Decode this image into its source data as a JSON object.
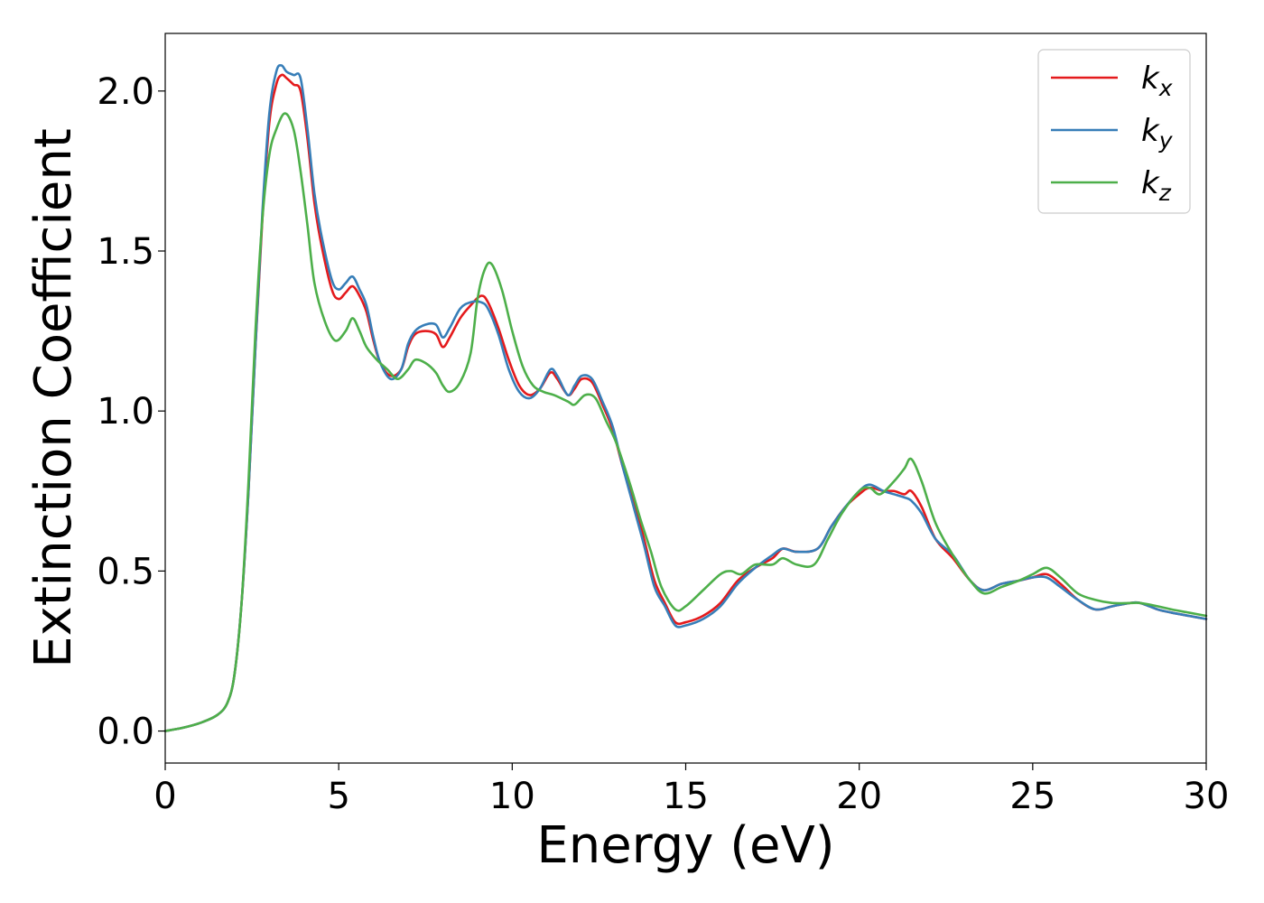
{
  "chart_data": {
    "type": "line",
    "title": "",
    "xlabel": "Energy (eV)",
    "ylabel": "Extinction Coefficient",
    "xlim": [
      0,
      30
    ],
    "ylim": [
      -0.1,
      2.18
    ],
    "xticks": [
      0,
      5,
      10,
      15,
      20,
      25,
      30
    ],
    "xtick_labels": [
      "0",
      "5",
      "10",
      "15",
      "20",
      "25",
      "30"
    ],
    "yticks": [
      0.0,
      0.5,
      1.0,
      1.5,
      2.0
    ],
    "ytick_labels": [
      "0.0",
      "0.5",
      "1.0",
      "1.5",
      "2.0"
    ],
    "grid": false,
    "legend_position": "top-right",
    "series": [
      {
        "name": "k_x",
        "label_base": "k",
        "label_sub": "x",
        "color": "#e41a1c",
        "points": [
          [
            0,
            0.0
          ],
          [
            0.5,
            0.01
          ],
          [
            1.0,
            0.025
          ],
          [
            1.5,
            0.05
          ],
          [
            1.8,
            0.09
          ],
          [
            2.0,
            0.18
          ],
          [
            2.2,
            0.4
          ],
          [
            2.4,
            0.75
          ],
          [
            2.6,
            1.2
          ],
          [
            2.8,
            1.6
          ],
          [
            3.0,
            1.9
          ],
          [
            3.2,
            2.02
          ],
          [
            3.35,
            2.05
          ],
          [
            3.5,
            2.04
          ],
          [
            3.7,
            2.02
          ],
          [
            3.9,
            2.0
          ],
          [
            4.1,
            1.85
          ],
          [
            4.3,
            1.65
          ],
          [
            4.5,
            1.52
          ],
          [
            4.8,
            1.38
          ],
          [
            5.0,
            1.35
          ],
          [
            5.2,
            1.37
          ],
          [
            5.4,
            1.39
          ],
          [
            5.6,
            1.36
          ],
          [
            5.8,
            1.31
          ],
          [
            6.0,
            1.22
          ],
          [
            6.2,
            1.15
          ],
          [
            6.5,
            1.11
          ],
          [
            6.8,
            1.13
          ],
          [
            7.0,
            1.2
          ],
          [
            7.2,
            1.24
          ],
          [
            7.5,
            1.25
          ],
          [
            7.8,
            1.24
          ],
          [
            8.0,
            1.2
          ],
          [
            8.2,
            1.23
          ],
          [
            8.5,
            1.29
          ],
          [
            8.8,
            1.33
          ],
          [
            9.1,
            1.36
          ],
          [
            9.3,
            1.34
          ],
          [
            9.6,
            1.26
          ],
          [
            9.9,
            1.16
          ],
          [
            10.2,
            1.08
          ],
          [
            10.5,
            1.05
          ],
          [
            10.8,
            1.07
          ],
          [
            11.1,
            1.12
          ],
          [
            11.3,
            1.1
          ],
          [
            11.6,
            1.05
          ],
          [
            11.8,
            1.07
          ],
          [
            12.0,
            1.1
          ],
          [
            12.3,
            1.09
          ],
          [
            12.6,
            1.02
          ],
          [
            12.9,
            0.94
          ],
          [
            13.2,
            0.82
          ],
          [
            13.5,
            0.72
          ],
          [
            13.8,
            0.6
          ],
          [
            14.1,
            0.47
          ],
          [
            14.4,
            0.4
          ],
          [
            14.7,
            0.34
          ],
          [
            15.0,
            0.34
          ],
          [
            15.5,
            0.36
          ],
          [
            16.0,
            0.4
          ],
          [
            16.5,
            0.47
          ],
          [
            17.0,
            0.51
          ],
          [
            17.5,
            0.54
          ],
          [
            17.8,
            0.57
          ],
          [
            18.2,
            0.56
          ],
          [
            18.8,
            0.57
          ],
          [
            19.2,
            0.64
          ],
          [
            19.6,
            0.7
          ],
          [
            20.0,
            0.74
          ],
          [
            20.3,
            0.76
          ],
          [
            20.7,
            0.75
          ],
          [
            21.0,
            0.75
          ],
          [
            21.3,
            0.74
          ],
          [
            21.5,
            0.75
          ],
          [
            21.8,
            0.7
          ],
          [
            22.2,
            0.6
          ],
          [
            22.7,
            0.54
          ],
          [
            23.2,
            0.47
          ],
          [
            23.6,
            0.44
          ],
          [
            24.1,
            0.46
          ],
          [
            24.6,
            0.47
          ],
          [
            25.0,
            0.48
          ],
          [
            25.4,
            0.49
          ],
          [
            25.8,
            0.46
          ],
          [
            26.3,
            0.41
          ],
          [
            26.8,
            0.38
          ],
          [
            27.3,
            0.39
          ],
          [
            27.8,
            0.4
          ],
          [
            28.1,
            0.4
          ],
          [
            28.6,
            0.38
          ],
          [
            29.0,
            0.37
          ],
          [
            29.5,
            0.36
          ],
          [
            30.0,
            0.35
          ]
        ]
      },
      {
        "name": "k_y",
        "label_base": "k",
        "label_sub": "y",
        "color": "#377eb8",
        "points": [
          [
            0,
            0.0
          ],
          [
            0.5,
            0.01
          ],
          [
            1.0,
            0.025
          ],
          [
            1.5,
            0.05
          ],
          [
            1.8,
            0.09
          ],
          [
            2.0,
            0.18
          ],
          [
            2.2,
            0.4
          ],
          [
            2.4,
            0.75
          ],
          [
            2.6,
            1.2
          ],
          [
            2.8,
            1.62
          ],
          [
            3.0,
            1.93
          ],
          [
            3.2,
            2.06
          ],
          [
            3.35,
            2.08
          ],
          [
            3.5,
            2.06
          ],
          [
            3.7,
            2.05
          ],
          [
            3.9,
            2.04
          ],
          [
            4.1,
            1.88
          ],
          [
            4.3,
            1.68
          ],
          [
            4.5,
            1.55
          ],
          [
            4.8,
            1.41
          ],
          [
            5.0,
            1.38
          ],
          [
            5.2,
            1.4
          ],
          [
            5.4,
            1.42
          ],
          [
            5.6,
            1.38
          ],
          [
            5.8,
            1.33
          ],
          [
            6.0,
            1.23
          ],
          [
            6.2,
            1.15
          ],
          [
            6.5,
            1.1
          ],
          [
            6.8,
            1.13
          ],
          [
            7.0,
            1.21
          ],
          [
            7.2,
            1.25
          ],
          [
            7.5,
            1.27
          ],
          [
            7.8,
            1.27
          ],
          [
            8.0,
            1.23
          ],
          [
            8.2,
            1.26
          ],
          [
            8.5,
            1.32
          ],
          [
            8.8,
            1.34
          ],
          [
            9.1,
            1.34
          ],
          [
            9.3,
            1.32
          ],
          [
            9.6,
            1.24
          ],
          [
            9.9,
            1.13
          ],
          [
            10.2,
            1.06
          ],
          [
            10.5,
            1.04
          ],
          [
            10.8,
            1.07
          ],
          [
            11.1,
            1.13
          ],
          [
            11.3,
            1.11
          ],
          [
            11.6,
            1.05
          ],
          [
            11.8,
            1.08
          ],
          [
            12.0,
            1.11
          ],
          [
            12.3,
            1.1
          ],
          [
            12.6,
            1.03
          ],
          [
            12.9,
            0.95
          ],
          [
            13.2,
            0.82
          ],
          [
            13.5,
            0.7
          ],
          [
            13.8,
            0.58
          ],
          [
            14.1,
            0.45
          ],
          [
            14.4,
            0.39
          ],
          [
            14.7,
            0.33
          ],
          [
            15.0,
            0.33
          ],
          [
            15.5,
            0.35
          ],
          [
            16.0,
            0.39
          ],
          [
            16.5,
            0.46
          ],
          [
            17.0,
            0.51
          ],
          [
            17.5,
            0.55
          ],
          [
            17.8,
            0.57
          ],
          [
            18.2,
            0.56
          ],
          [
            18.8,
            0.57
          ],
          [
            19.2,
            0.64
          ],
          [
            19.6,
            0.7
          ],
          [
            20.0,
            0.75
          ],
          [
            20.3,
            0.77
          ],
          [
            20.7,
            0.75
          ],
          [
            21.0,
            0.74
          ],
          [
            21.3,
            0.73
          ],
          [
            21.5,
            0.72
          ],
          [
            21.8,
            0.68
          ],
          [
            22.2,
            0.6
          ],
          [
            22.7,
            0.55
          ],
          [
            23.2,
            0.47
          ],
          [
            23.6,
            0.44
          ],
          [
            24.1,
            0.46
          ],
          [
            24.6,
            0.47
          ],
          [
            25.0,
            0.48
          ],
          [
            25.4,
            0.48
          ],
          [
            25.8,
            0.45
          ],
          [
            26.3,
            0.41
          ],
          [
            26.8,
            0.38
          ],
          [
            27.3,
            0.39
          ],
          [
            27.8,
            0.4
          ],
          [
            28.1,
            0.4
          ],
          [
            28.6,
            0.38
          ],
          [
            29.0,
            0.37
          ],
          [
            29.5,
            0.36
          ],
          [
            30.0,
            0.35
          ]
        ]
      },
      {
        "name": "k_z",
        "label_base": "k",
        "label_sub": "z",
        "color": "#4daf4a",
        "points": [
          [
            0,
            0.0
          ],
          [
            0.5,
            0.01
          ],
          [
            1.0,
            0.025
          ],
          [
            1.5,
            0.05
          ],
          [
            1.8,
            0.09
          ],
          [
            2.0,
            0.18
          ],
          [
            2.2,
            0.4
          ],
          [
            2.4,
            0.78
          ],
          [
            2.6,
            1.25
          ],
          [
            2.8,
            1.6
          ],
          [
            3.0,
            1.8
          ],
          [
            3.2,
            1.88
          ],
          [
            3.45,
            1.93
          ],
          [
            3.7,
            1.88
          ],
          [
            3.9,
            1.75
          ],
          [
            4.1,
            1.58
          ],
          [
            4.3,
            1.4
          ],
          [
            4.6,
            1.28
          ],
          [
            4.9,
            1.22
          ],
          [
            5.2,
            1.25
          ],
          [
            5.4,
            1.29
          ],
          [
            5.6,
            1.25
          ],
          [
            5.8,
            1.2
          ],
          [
            6.1,
            1.16
          ],
          [
            6.4,
            1.13
          ],
          [
            6.7,
            1.1
          ],
          [
            7.0,
            1.13
          ],
          [
            7.2,
            1.16
          ],
          [
            7.5,
            1.15
          ],
          [
            7.8,
            1.12
          ],
          [
            8.0,
            1.08
          ],
          [
            8.2,
            1.06
          ],
          [
            8.5,
            1.09
          ],
          [
            8.8,
            1.18
          ],
          [
            9.0,
            1.35
          ],
          [
            9.2,
            1.44
          ],
          [
            9.4,
            1.46
          ],
          [
            9.7,
            1.38
          ],
          [
            10.0,
            1.25
          ],
          [
            10.3,
            1.14
          ],
          [
            10.6,
            1.08
          ],
          [
            10.9,
            1.06
          ],
          [
            11.2,
            1.05
          ],
          [
            11.6,
            1.03
          ],
          [
            11.8,
            1.02
          ],
          [
            12.1,
            1.05
          ],
          [
            12.4,
            1.04
          ],
          [
            12.7,
            0.97
          ],
          [
            13.0,
            0.9
          ],
          [
            13.4,
            0.77
          ],
          [
            13.7,
            0.66
          ],
          [
            14.0,
            0.56
          ],
          [
            14.3,
            0.45
          ],
          [
            14.7,
            0.38
          ],
          [
            15.0,
            0.39
          ],
          [
            15.5,
            0.44
          ],
          [
            16.0,
            0.49
          ],
          [
            16.3,
            0.5
          ],
          [
            16.6,
            0.49
          ],
          [
            17.0,
            0.52
          ],
          [
            17.5,
            0.52
          ],
          [
            17.8,
            0.54
          ],
          [
            18.2,
            0.52
          ],
          [
            18.7,
            0.52
          ],
          [
            19.1,
            0.6
          ],
          [
            19.5,
            0.68
          ],
          [
            20.0,
            0.75
          ],
          [
            20.3,
            0.76
          ],
          [
            20.6,
            0.74
          ],
          [
            21.0,
            0.78
          ],
          [
            21.3,
            0.82
          ],
          [
            21.5,
            0.85
          ],
          [
            21.8,
            0.78
          ],
          [
            22.2,
            0.65
          ],
          [
            22.7,
            0.55
          ],
          [
            23.2,
            0.47
          ],
          [
            23.6,
            0.43
          ],
          [
            24.1,
            0.45
          ],
          [
            24.6,
            0.47
          ],
          [
            25.0,
            0.49
          ],
          [
            25.4,
            0.51
          ],
          [
            25.8,
            0.48
          ],
          [
            26.3,
            0.43
          ],
          [
            26.8,
            0.41
          ],
          [
            27.3,
            0.4
          ],
          [
            27.8,
            0.4
          ],
          [
            28.1,
            0.4
          ],
          [
            28.6,
            0.39
          ],
          [
            29.0,
            0.38
          ],
          [
            29.5,
            0.37
          ],
          [
            30.0,
            0.36
          ]
        ]
      }
    ]
  }
}
